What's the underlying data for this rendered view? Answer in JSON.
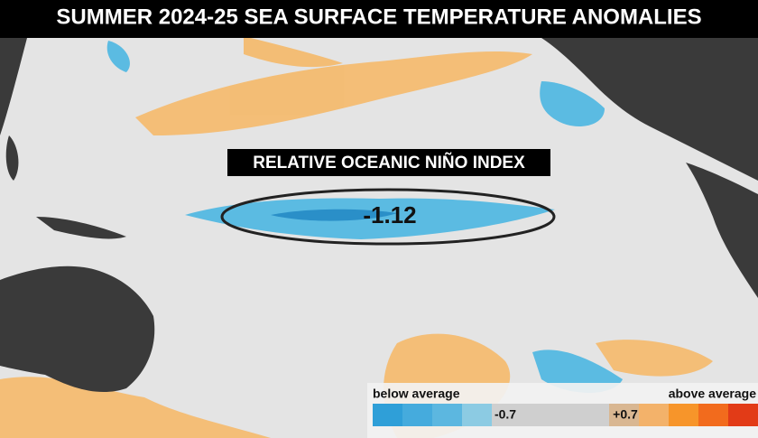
{
  "title": "SUMMER 2024-25 SEA SURFACE TEMPERATURE ANOMALIES",
  "index_label": "RELATIVE OCEANIC NIÑO INDEX",
  "index_value": "-1.12",
  "legend": {
    "below": "below average",
    "above": "above average",
    "low_threshold": "-0.7",
    "high_threshold": "+0.7"
  }
}
